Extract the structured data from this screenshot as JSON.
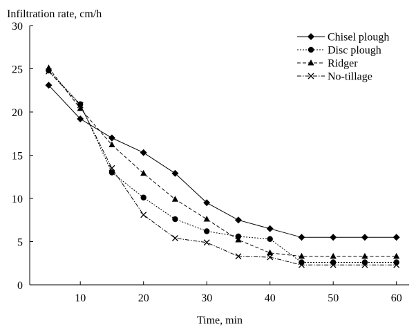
{
  "chart_data": {
    "type": "line",
    "ylabel": "Infiltration rate, cm/h",
    "xlabel": "Time, min",
    "xlim": [
      2,
      62
    ],
    "ylim": [
      0,
      30
    ],
    "xticks": [
      10,
      20,
      30,
      40,
      50,
      60
    ],
    "yticks": [
      0,
      5,
      10,
      15,
      20,
      25,
      30
    ],
    "x": [
      5,
      10,
      15,
      20,
      25,
      30,
      35,
      40,
      45,
      50,
      55,
      60
    ],
    "legend_position": "top-right",
    "grid": false,
    "series": [
      {
        "name": "Chisel plough",
        "marker": "diamond",
        "dash": "solid",
        "values": [
          23.1,
          19.2,
          17.0,
          15.3,
          12.9,
          9.5,
          7.5,
          6.5,
          5.5,
          5.5,
          5.5,
          5.5
        ]
      },
      {
        "name": "Disc plough",
        "marker": "circle",
        "dash": "dotted",
        "values": [
          24.8,
          20.9,
          13.0,
          10.1,
          7.6,
          6.2,
          5.6,
          5.3,
          2.6,
          2.6,
          2.6,
          2.6
        ]
      },
      {
        "name": "Ridger",
        "marker": "triangle",
        "dash": "dashed",
        "values": [
          25.1,
          20.4,
          16.2,
          12.9,
          9.9,
          7.6,
          5.2,
          3.7,
          3.3,
          3.3,
          3.3,
          3.3
        ]
      },
      {
        "name": "No-tillage",
        "marker": "x",
        "dash": "dashdot",
        "values": [
          24.7,
          20.8,
          13.5,
          8.1,
          5.4,
          4.9,
          3.3,
          3.2,
          2.3,
          2.3,
          2.3,
          2.3
        ]
      }
    ]
  }
}
